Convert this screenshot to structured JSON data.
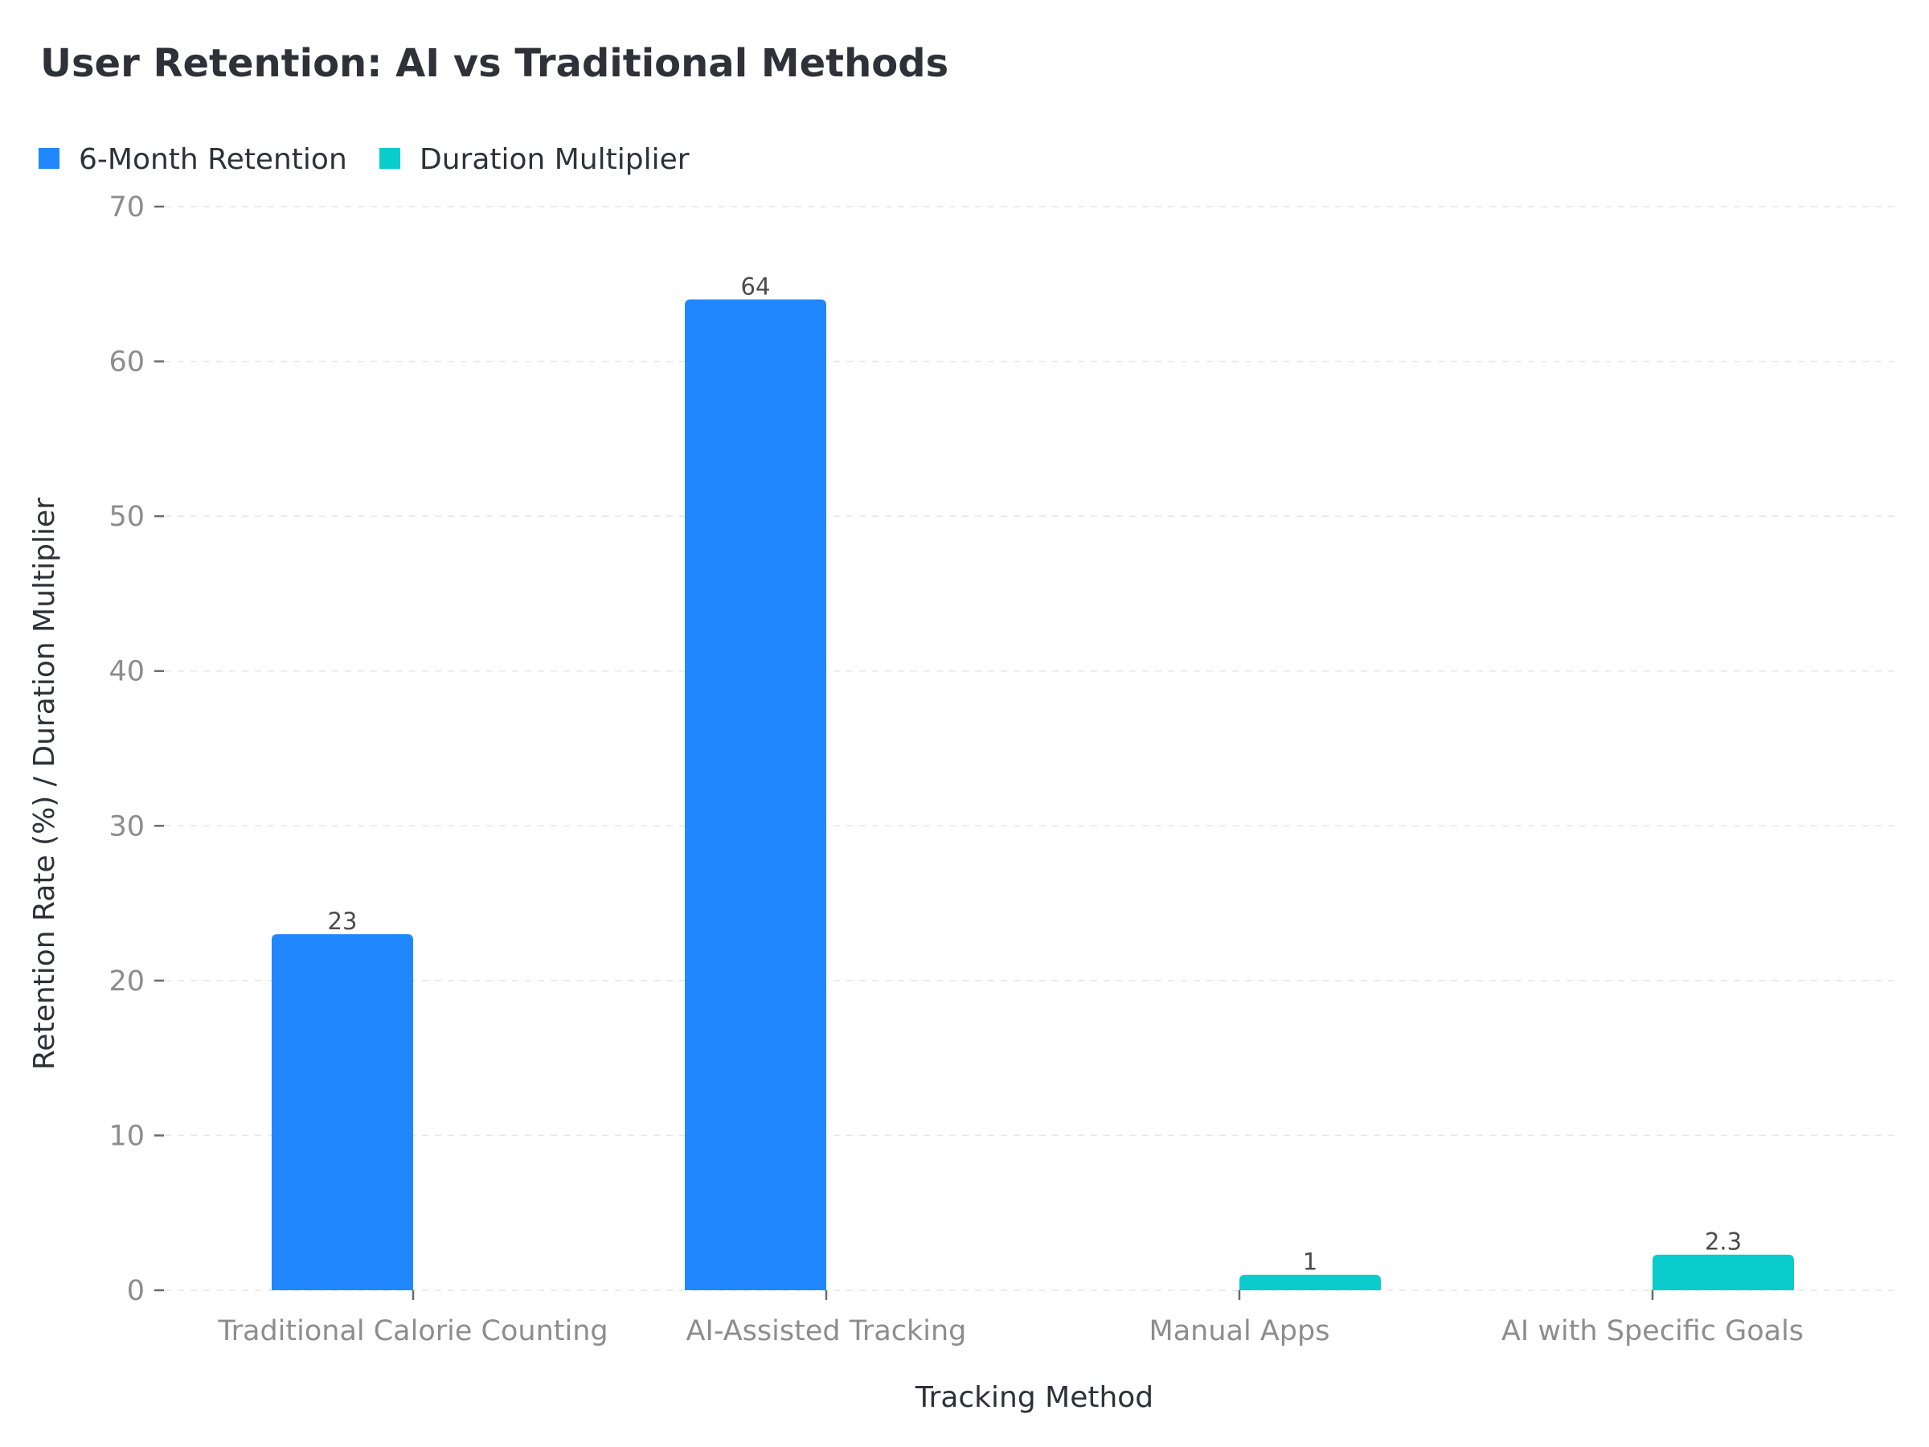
{
  "chart_data": {
    "type": "bar",
    "title": "User Retention: AI vs Traditional Methods",
    "xlabel": "Tracking Method",
    "ylabel": "Retention Rate (%) / Duration Multiplier",
    "categories": [
      "Traditional Calorie Counting",
      "AI-Assisted Tracking",
      "Manual Apps",
      "AI with Specific Goals"
    ],
    "series": [
      {
        "name": "6-Month Retention",
        "color": "#2187ff",
        "values": [
          23,
          64,
          null,
          null
        ],
        "labels": [
          "23",
          "64",
          "",
          ""
        ]
      },
      {
        "name": "Duration Multiplier",
        "color": "#0bcccc",
        "values": [
          null,
          null,
          1,
          2.3
        ],
        "labels": [
          "",
          "",
          "1",
          "2.3"
        ]
      }
    ],
    "ylim": [
      0,
      70
    ],
    "yticks": [
      0,
      10,
      20,
      30,
      40,
      50,
      60,
      70
    ],
    "grid": true,
    "legend": "top-left"
  }
}
